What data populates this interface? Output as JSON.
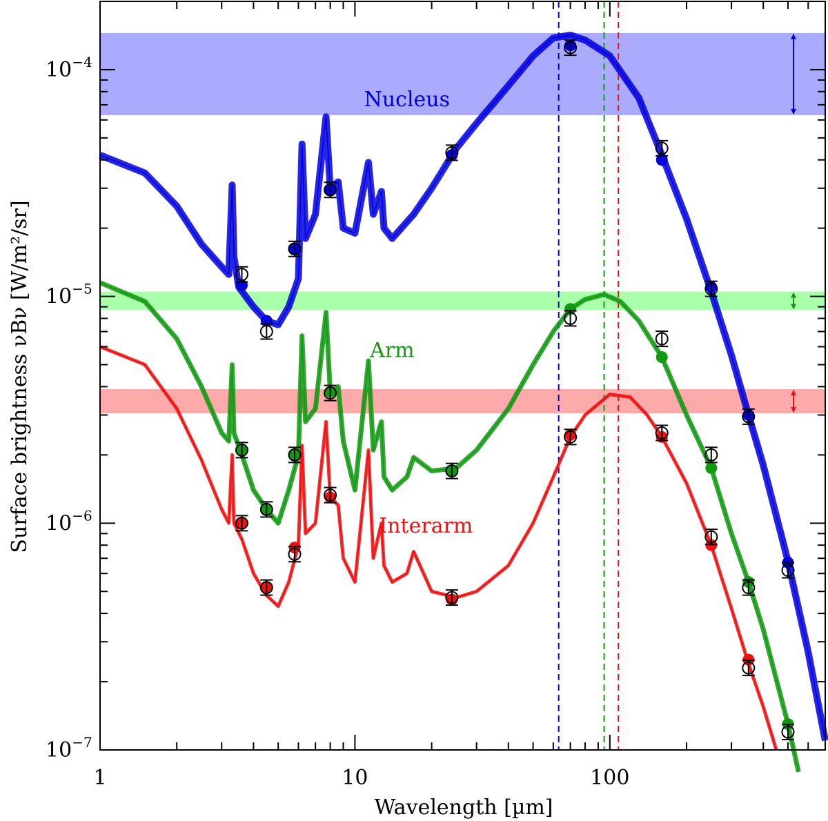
{
  "chart_data": {
    "type": "line",
    "title": "",
    "xlabel": "Wavelength [µm]",
    "ylabel": "Surface brightness νBν [W/m²/sr]",
    "xscale": "log",
    "yscale": "log",
    "xlim": [
      1,
      700
    ],
    "ylim": [
      1e-07,
      0.0002
    ],
    "x_ticks": [
      {
        "value": 1,
        "label": "1"
      },
      {
        "value": 10,
        "label": "10"
      },
      {
        "value": 100,
        "label": "100"
      }
    ],
    "y_ticks": [
      {
        "value": 1e-07,
        "base": "10",
        "exp": "−7"
      },
      {
        "value": 1e-06,
        "base": "10",
        "exp": "−6"
      },
      {
        "value": 1e-05,
        "base": "10",
        "exp": "−5"
      },
      {
        "value": 0.0001,
        "base": "10",
        "exp": "−4"
      }
    ],
    "series": [
      {
        "name": "Nucleus",
        "label": "Nucleus",
        "color": "#0000dd",
        "band_color": "#aaaaff",
        "label_pos": [
          16,
          6.9e-05
        ],
        "band": [
          6.3e-05,
          0.000145
        ],
        "peak_wavelength": 63,
        "model": [
          [
            1,
            4.2e-05
          ],
          [
            1.5,
            3.5e-05
          ],
          [
            2,
            2.5e-05
          ],
          [
            2.5,
            1.7e-05
          ],
          [
            3,
            1.35e-05
          ],
          [
            3.2,
            1.25e-05
          ],
          [
            3.3,
            3.1e-05
          ],
          [
            3.35,
            1.5e-05
          ],
          [
            3.5,
            1.1e-05
          ],
          [
            4,
            9e-06
          ],
          [
            4.5,
            7.8e-06
          ],
          [
            5,
            7.5e-06
          ],
          [
            5.5,
            9e-06
          ],
          [
            6,
            1.2e-05
          ],
          [
            6.2,
            4.7e-05
          ],
          [
            6.4,
            1.8e-05
          ],
          [
            7,
            2.3e-05
          ],
          [
            7.7,
            6.2e-05
          ],
          [
            8,
            3e-05
          ],
          [
            8.6,
            3.2e-05
          ],
          [
            9,
            2e-05
          ],
          [
            10,
            1.9e-05
          ],
          [
            11.3,
            3.9e-05
          ],
          [
            11.8,
            2.3e-05
          ],
          [
            12.7,
            2.9e-05
          ],
          [
            13,
            2e-05
          ],
          [
            14,
            1.8e-05
          ],
          [
            17,
            2.3e-05
          ],
          [
            20,
            3e-05
          ],
          [
            25,
            4.5e-05
          ],
          [
            30,
            5.8e-05
          ],
          [
            40,
            8.5e-05
          ],
          [
            50,
            0.000115
          ],
          [
            60,
            0.000138
          ],
          [
            70,
            0.000142
          ],
          [
            80,
            0.000135
          ],
          [
            100,
            0.000115
          ],
          [
            130,
            7.5e-05
          ],
          [
            160,
            4.2e-05
          ],
          [
            200,
            2.2e-05
          ],
          [
            250,
            1.05e-05
          ],
          [
            300,
            5.5e-06
          ],
          [
            350,
            3e-06
          ],
          [
            400,
            1.8e-06
          ],
          [
            500,
            6.8e-07
          ],
          [
            600,
            2.7e-07
          ],
          [
            700,
            1.1e-07
          ]
        ],
        "model_points": [
          [
            3.6,
            1.12e-05
          ],
          [
            4.5,
            7.8e-06
          ],
          [
            5.8,
            1.62e-05
          ],
          [
            8,
            2.95e-05
          ],
          [
            24,
            4.2e-05
          ],
          [
            70,
            0.000128
          ],
          [
            160,
            4e-05
          ],
          [
            250,
            1.1e-05
          ],
          [
            350,
            3e-06
          ],
          [
            500,
            6.7e-07
          ]
        ],
        "observed": [
          [
            3.6,
            1.25e-05
          ],
          [
            4.5,
            7e-06
          ],
          [
            5.8,
            1.62e-05
          ],
          [
            8,
            2.95e-05
          ],
          [
            24,
            4.3e-05
          ],
          [
            70,
            0.000125
          ],
          [
            160,
            4.5e-05
          ],
          [
            250,
            1.08e-05
          ],
          [
            350,
            2.95e-06
          ],
          [
            500,
            6.2e-07
          ]
        ]
      },
      {
        "name": "Arm",
        "label": "Arm",
        "color": "#119911",
        "band_color": "#aaffaa",
        "label_pos": [
          14,
          5.4e-06
        ],
        "band": [
          8.7e-06,
          1.05e-05
        ],
        "peak_wavelength": 95,
        "model": [
          [
            1,
            1.15e-05
          ],
          [
            1.5,
            9.5e-06
          ],
          [
            2,
            6.5e-06
          ],
          [
            2.5,
            4e-06
          ],
          [
            3,
            2.5e-06
          ],
          [
            3.2,
            2.3e-06
          ],
          [
            3.3,
            5e-06
          ],
          [
            3.35,
            2.5e-06
          ],
          [
            3.6,
            2e-06
          ],
          [
            4,
            1.4e-06
          ],
          [
            4.5,
            1.15e-06
          ],
          [
            5,
            1e-06
          ],
          [
            5.5,
            1.4e-06
          ],
          [
            6,
            2e-06
          ],
          [
            6.2,
            6.7e-06
          ],
          [
            6.4,
            2.8e-06
          ],
          [
            7,
            3.2e-06
          ],
          [
            7.7,
            8.5e-06
          ],
          [
            8,
            3.8e-06
          ],
          [
            8.6,
            4e-06
          ],
          [
            9,
            2.3e-06
          ],
          [
            10,
            1.4e-06
          ],
          [
            11.3,
            5.2e-06
          ],
          [
            11.8,
            2.1e-06
          ],
          [
            12.7,
            2.8e-06
          ],
          [
            13,
            1.6e-06
          ],
          [
            14,
            1.4e-06
          ],
          [
            16,
            1.6e-06
          ],
          [
            17,
            1.95e-06
          ],
          [
            20,
            1.7e-06
          ],
          [
            25,
            1.75e-06
          ],
          [
            30,
            2.1e-06
          ],
          [
            40,
            3.2e-06
          ],
          [
            50,
            5e-06
          ],
          [
            60,
            7e-06
          ],
          [
            70,
            8.8e-06
          ],
          [
            80,
            9.7e-06
          ],
          [
            95,
            1.02e-05
          ],
          [
            110,
            9.5e-06
          ],
          [
            130,
            7.8e-06
          ],
          [
            160,
            5.4e-06
          ],
          [
            200,
            3e-06
          ],
          [
            250,
            1.75e-06
          ],
          [
            300,
            9e-07
          ],
          [
            350,
            5.5e-07
          ],
          [
            400,
            3.4e-07
          ],
          [
            500,
            1.3e-07
          ],
          [
            550,
            8e-08
          ]
        ],
        "model_points": [
          [
            3.6,
            2.1e-06
          ],
          [
            4.5,
            1.15e-06
          ],
          [
            5.8,
            2e-06
          ],
          [
            8,
            3.8e-06
          ],
          [
            24,
            1.7e-06
          ],
          [
            70,
            8.8e-06
          ],
          [
            160,
            5.4e-06
          ],
          [
            250,
            1.75e-06
          ],
          [
            350,
            5.5e-07
          ],
          [
            500,
            1.3e-07
          ]
        ],
        "observed": [
          [
            3.6,
            2.1e-06
          ],
          [
            4.5,
            1.15e-06
          ],
          [
            5.8,
            2e-06
          ],
          [
            8,
            3.75e-06
          ],
          [
            24,
            1.7e-06
          ],
          [
            70,
            8e-06
          ],
          [
            160,
            6.5e-06
          ],
          [
            250,
            2e-06
          ],
          [
            350,
            5.2e-07
          ],
          [
            500,
            1.2e-07
          ]
        ]
      },
      {
        "name": "Interarm",
        "label": "Interarm",
        "color": "#ee1111",
        "band_color": "#ffaaaa",
        "label_pos": [
          19,
          9.1e-07
        ],
        "band": [
          3.05e-06,
          3.9e-06
        ],
        "peak_wavelength": 108,
        "model": [
          [
            1,
            6e-06
          ],
          [
            1.5,
            5e-06
          ],
          [
            2,
            3.2e-06
          ],
          [
            2.5,
            1.9e-06
          ],
          [
            3,
            1.15e-06
          ],
          [
            3.2,
            1e-06
          ],
          [
            3.3,
            2e-06
          ],
          [
            3.35,
            1e-06
          ],
          [
            3.6,
            8.5e-07
          ],
          [
            4,
            6e-07
          ],
          [
            4.5,
            4.8e-07
          ],
          [
            5,
            4.3e-07
          ],
          [
            5.5,
            5.5e-07
          ],
          [
            6,
            8e-07
          ],
          [
            6.2,
            2.2e-06
          ],
          [
            6.4,
            9e-07
          ],
          [
            7,
            1e-06
          ],
          [
            7.7,
            2.8e-06
          ],
          [
            8,
            1.3e-06
          ],
          [
            8.6,
            1.2e-06
          ],
          [
            9,
            7e-07
          ],
          [
            10,
            5.5e-07
          ],
          [
            11.3,
            2.1e-06
          ],
          [
            11.8,
            7e-07
          ],
          [
            12.7,
            1e-06
          ],
          [
            13,
            6.5e-07
          ],
          [
            14,
            5.5e-07
          ],
          [
            16,
            6e-07
          ],
          [
            17,
            7.5e-07
          ],
          [
            20,
            5e-07
          ],
          [
            25,
            4.7e-07
          ],
          [
            30,
            5e-07
          ],
          [
            40,
            6.5e-07
          ],
          [
            50,
            1e-06
          ],
          [
            60,
            1.6e-06
          ],
          [
            70,
            2.4e-06
          ],
          [
            80,
            3e-06
          ],
          [
            100,
            3.7e-06
          ],
          [
            120,
            3.6e-06
          ],
          [
            140,
            3e-06
          ],
          [
            160,
            2.4e-06
          ],
          [
            200,
            1.5e-06
          ],
          [
            250,
            8e-07
          ],
          [
            300,
            4.2e-07
          ],
          [
            350,
            2.4e-07
          ],
          [
            400,
            1.55e-07
          ],
          [
            450,
            1e-07
          ]
        ],
        "model_points": [
          [
            3.6,
            1e-06
          ],
          [
            4.5,
            5.2e-07
          ],
          [
            5.8,
            7.8e-07
          ],
          [
            8,
            1.3e-06
          ],
          [
            24,
            4.6e-07
          ],
          [
            70,
            2.45e-06
          ],
          [
            160,
            2.4e-06
          ],
          [
            250,
            8e-07
          ],
          [
            350,
            2.5e-07
          ]
        ],
        "observed": [
          [
            3.6,
            1e-06
          ],
          [
            4.5,
            5.2e-07
          ],
          [
            5.8,
            7.3e-07
          ],
          [
            8,
            1.33e-06
          ],
          [
            24,
            4.7e-07
          ],
          [
            70,
            2.4e-06
          ],
          [
            160,
            2.5e-06
          ],
          [
            250,
            8.7e-07
          ],
          [
            350,
            2.3e-07
          ]
        ]
      }
    ]
  }
}
